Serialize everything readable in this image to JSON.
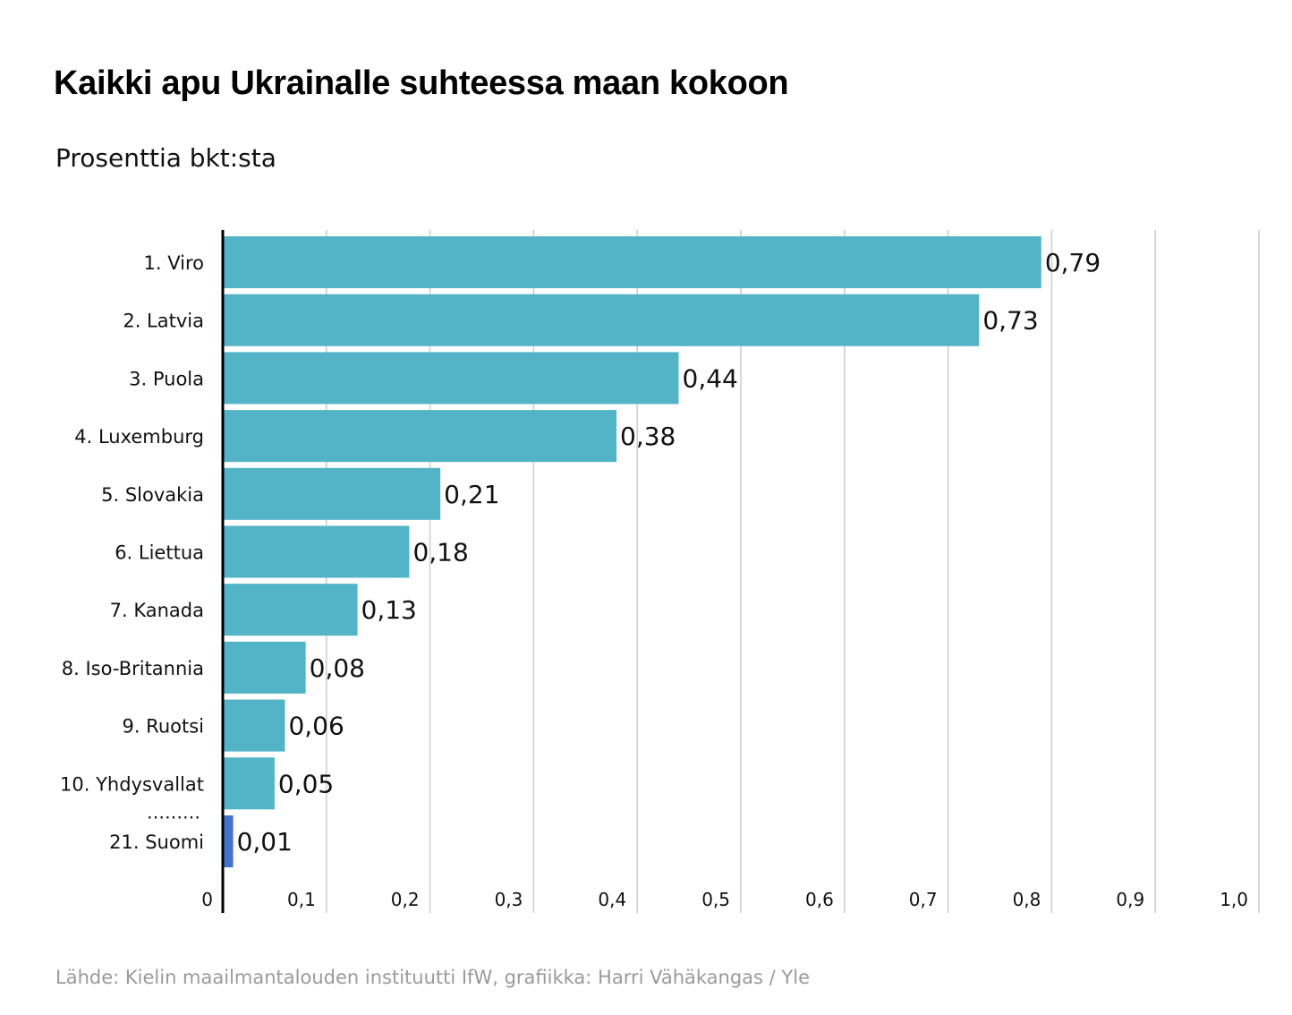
{
  "title": "Kaikki apu Ukrainalle suhteessa maan kokoon",
  "subtitle": "Prosenttia bkt:sta",
  "source": "Lähde: Kielin maailmantalouden instituutti IfW, grafiikka: Harri Vähäkangas / Yle",
  "colors": {
    "bar": "#53b4c8",
    "highlight": "#4373c9",
    "grid": "#cccccc",
    "axis": "#000000"
  },
  "chart_data": {
    "type": "bar",
    "orientation": "horizontal",
    "title": "Kaikki apu Ukrainalle suhteessa maan kokoon",
    "subtitle": "Prosenttia bkt:sta",
    "categories": [
      "1. Viro",
      "2. Latvia",
      "3. Puola",
      "4. Luxemburg",
      "5. Slovakia",
      "6. Liettua",
      "7. Kanada",
      "8. Iso-Britannia",
      "9. Ruotsi",
      "10. Yhdysvallat",
      "21. Suomi"
    ],
    "values": [
      0.79,
      0.73,
      0.44,
      0.38,
      0.21,
      0.18,
      0.13,
      0.08,
      0.06,
      0.05,
      0.01
    ],
    "value_labels": [
      "0,79",
      "0,73",
      "0,44",
      "0,38",
      "0,21",
      "0,18",
      "0,13",
      "0,08",
      "0,06",
      "0,05",
      "0,01"
    ],
    "highlight": "21. Suomi",
    "gap_marker": "………",
    "xlim": [
      0,
      1.0
    ],
    "xticks": [
      0,
      0.1,
      0.2,
      0.3,
      0.4,
      0.5,
      0.6,
      0.7,
      0.8,
      0.9,
      1.0
    ],
    "xtick_labels": [
      "0",
      "0,1",
      "0,2",
      "0,3",
      "0,4",
      "0,5",
      "0,6",
      "0,7",
      "0,8",
      "0,9",
      "1,0"
    ],
    "grid": true
  }
}
